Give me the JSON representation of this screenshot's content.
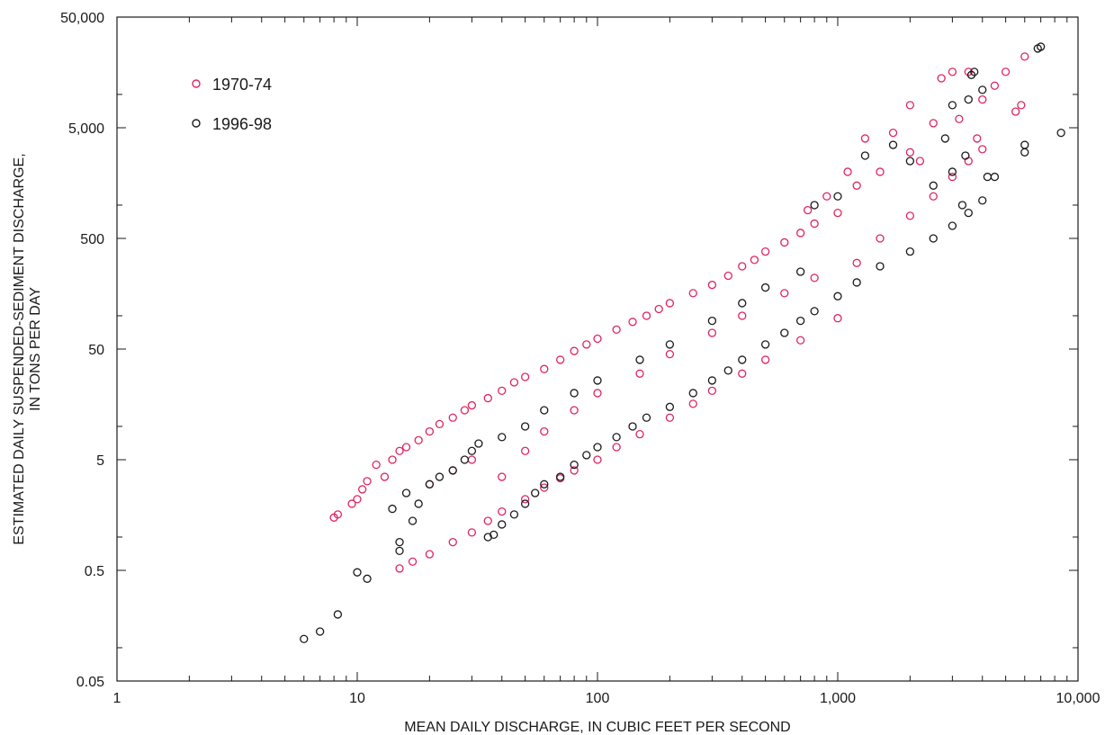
{
  "chart_data": {
    "type": "scatter",
    "x_scale": "log",
    "y_scale": "log",
    "xlim": [
      1,
      10000
    ],
    "ylim": [
      0.05,
      50000
    ],
    "grid": false,
    "legend_position": "top-left",
    "xlabel": "MEAN DAILY DISCHARGE, IN CUBIC FEET PER SECOND",
    "ylabel_lines": [
      "ESTIMATED DAILY SUSPENDED-SEDIMENT DISCHARGE,",
      "IN TONS PER DAY"
    ],
    "x_tick_labels": [
      {
        "value": 1,
        "label": "1"
      },
      {
        "value": 10,
        "label": "10"
      },
      {
        "value": 100,
        "label": "100"
      },
      {
        "value": 1000,
        "label": "1,000"
      },
      {
        "value": 10000,
        "label": "10,000"
      }
    ],
    "y_tick_labels": [
      {
        "value": 0.05,
        "label": "0.05"
      },
      {
        "value": 0.5,
        "label": "0.5"
      },
      {
        "value": 5,
        "label": "5"
      },
      {
        "value": 50,
        "label": "50"
      },
      {
        "value": 500,
        "label": "500"
      },
      {
        "value": 5000,
        "label": "5,000"
      },
      {
        "value": 50000,
        "label": "50,000"
      }
    ],
    "series": [
      {
        "name": "1970-74",
        "color": "#e0245e",
        "marker": "open-circle",
        "points": [
          [
            8,
            1.5
          ],
          [
            8.3,
            1.6
          ],
          [
            9.5,
            2.0
          ],
          [
            10,
            2.2
          ],
          [
            10.5,
            2.7
          ],
          [
            11,
            3.2
          ],
          [
            12,
            4.5
          ],
          [
            13,
            3.5
          ],
          [
            14,
            5.0
          ],
          [
            15,
            6.0
          ],
          [
            16,
            6.5
          ],
          [
            18,
            7.5
          ],
          [
            20,
            9.0
          ],
          [
            22,
            10.5
          ],
          [
            25,
            12.0
          ],
          [
            28,
            14.0
          ],
          [
            30,
            15.5
          ],
          [
            35,
            18.0
          ],
          [
            40,
            21.0
          ],
          [
            45,
            25.0
          ],
          [
            50,
            28.0
          ],
          [
            60,
            33.0
          ],
          [
            70,
            40.0
          ],
          [
            80,
            48.0
          ],
          [
            90,
            55.0
          ],
          [
            100,
            62.0
          ],
          [
            120,
            75.0
          ],
          [
            140,
            88.0
          ],
          [
            160,
            100.0
          ],
          [
            180,
            115.0
          ],
          [
            200,
            130.0
          ],
          [
            250,
            160.0
          ],
          [
            300,
            190.0
          ],
          [
            350,
            230.0
          ],
          [
            400,
            280.0
          ],
          [
            450,
            320.0
          ],
          [
            500,
            380.0
          ],
          [
            600,
            460.0
          ],
          [
            700,
            560.0
          ],
          [
            800,
            680.0
          ],
          [
            1000,
            850.0
          ],
          [
            15,
            0.52
          ],
          [
            17,
            0.6
          ],
          [
            20,
            0.7
          ],
          [
            25,
            0.9
          ],
          [
            30,
            1.1
          ],
          [
            35,
            1.4
          ],
          [
            40,
            1.7
          ],
          [
            50,
            2.2
          ],
          [
            60,
            2.8
          ],
          [
            70,
            3.4
          ],
          [
            80,
            4.0
          ],
          [
            100,
            5.0
          ],
          [
            120,
            6.5
          ],
          [
            150,
            8.5
          ],
          [
            200,
            12.0
          ],
          [
            250,
            16.0
          ],
          [
            300,
            21.0
          ],
          [
            400,
            30.0
          ],
          [
            500,
            40.0
          ],
          [
            700,
            60.0
          ],
          [
            1000,
            95.0
          ],
          [
            20,
            3.0
          ],
          [
            25,
            4.0
          ],
          [
            30,
            5.0
          ],
          [
            40,
            3.5
          ],
          [
            50,
            6.0
          ],
          [
            60,
            9.0
          ],
          [
            80,
            14.0
          ],
          [
            100,
            20.0
          ],
          [
            150,
            30.0
          ],
          [
            200,
            45.0
          ],
          [
            300,
            70.0
          ],
          [
            400,
            100.0
          ],
          [
            600,
            160.0
          ],
          [
            800,
            220.0
          ],
          [
            1200,
            300.0
          ],
          [
            1500,
            500.0
          ],
          [
            2000,
            800.0
          ],
          [
            2500,
            1200.0
          ],
          [
            3000,
            1800.0
          ],
          [
            3500,
            2500.0
          ],
          [
            4000,
            3200.0
          ],
          [
            1200,
            1500.0
          ],
          [
            1500,
            2000.0
          ],
          [
            2000,
            3000.0
          ],
          [
            2000,
            8000.0
          ],
          [
            2500,
            5500.0
          ],
          [
            2700,
            14000.0
          ],
          [
            3000,
            16000.0
          ],
          [
            3500,
            16000.0
          ],
          [
            4000,
            9000.0
          ],
          [
            4500,
            12000.0
          ],
          [
            5000,
            16000.0
          ],
          [
            5500,
            7000.0
          ],
          [
            5800,
            8000.0
          ],
          [
            6000,
            22000.0
          ],
          [
            1300,
            4000.0
          ],
          [
            1700,
            4500.0
          ],
          [
            2200,
            2500.0
          ],
          [
            1100,
            2000.0
          ],
          [
            900,
            1200.0
          ],
          [
            750,
            900.0
          ],
          [
            3200,
            6000.0
          ],
          [
            3800,
            4000.0
          ]
        ]
      },
      {
        "name": "1996-98",
        "color": "#1a1a1a",
        "marker": "open-circle",
        "points": [
          [
            6,
            0.12
          ],
          [
            7,
            0.14
          ],
          [
            8.3,
            0.2
          ],
          [
            10,
            0.48
          ],
          [
            11,
            0.42
          ],
          [
            14,
            1.8
          ],
          [
            15,
            0.9
          ],
          [
            15,
            0.75
          ],
          [
            16,
            2.5
          ],
          [
            17,
            1.4
          ],
          [
            18,
            2.0
          ],
          [
            20,
            3.0
          ],
          [
            22,
            3.5
          ],
          [
            25,
            4.0
          ],
          [
            28,
            5.0
          ],
          [
            30,
            6.0
          ],
          [
            32,
            7.0
          ],
          [
            35,
            1.0
          ],
          [
            37,
            1.05
          ],
          [
            40,
            1.3
          ],
          [
            45,
            1.6
          ],
          [
            50,
            2.0
          ],
          [
            55,
            2.5
          ],
          [
            60,
            3.0
          ],
          [
            70,
            3.5
          ],
          [
            80,
            4.5
          ],
          [
            90,
            5.5
          ],
          [
            100,
            6.5
          ],
          [
            120,
            8.0
          ],
          [
            140,
            10.0
          ],
          [
            160,
            12.0
          ],
          [
            200,
            15.0
          ],
          [
            250,
            20.0
          ],
          [
            300,
            26.0
          ],
          [
            350,
            32.0
          ],
          [
            400,
            40.0
          ],
          [
            500,
            55.0
          ],
          [
            600,
            70.0
          ],
          [
            700,
            90.0
          ],
          [
            800,
            110.0
          ],
          [
            1000,
            150.0
          ],
          [
            1200,
            200.0
          ],
          [
            1500,
            280.0
          ],
          [
            2000,
            380.0
          ],
          [
            2500,
            500.0
          ],
          [
            3000,
            650.0
          ],
          [
            3500,
            850.0
          ],
          [
            4000,
            1100.0
          ],
          [
            4200,
            1800.0
          ],
          [
            40,
            8.0
          ],
          [
            50,
            10.0
          ],
          [
            60,
            14.0
          ],
          [
            80,
            20.0
          ],
          [
            100,
            26.0
          ],
          [
            150,
            40.0
          ],
          [
            200,
            55.0
          ],
          [
            300,
            90.0
          ],
          [
            400,
            130.0
          ],
          [
            500,
            180.0
          ],
          [
            700,
            250.0
          ],
          [
            800,
            1000.0
          ],
          [
            1000,
            1200.0
          ],
          [
            1300,
            2800.0
          ],
          [
            1700,
            3500.0
          ],
          [
            2000,
            2500.0
          ],
          [
            2500,
            1500.0
          ],
          [
            3000,
            2000.0
          ],
          [
            3400,
            2800.0
          ],
          [
            2800,
            4000.0
          ],
          [
            3000,
            8000.0
          ],
          [
            3500,
            9000.0
          ],
          [
            3600,
            15000.0
          ],
          [
            3700,
            16000.0
          ],
          [
            4000,
            11000.0
          ],
          [
            6000,
            3500.0
          ],
          [
            6000,
            3000.0
          ],
          [
            6800,
            26000.0
          ],
          [
            7000,
            27000.0
          ],
          [
            8500,
            4500.0
          ],
          [
            3300,
            1000.0
          ],
          [
            4500,
            1800.0
          ]
        ]
      }
    ]
  }
}
